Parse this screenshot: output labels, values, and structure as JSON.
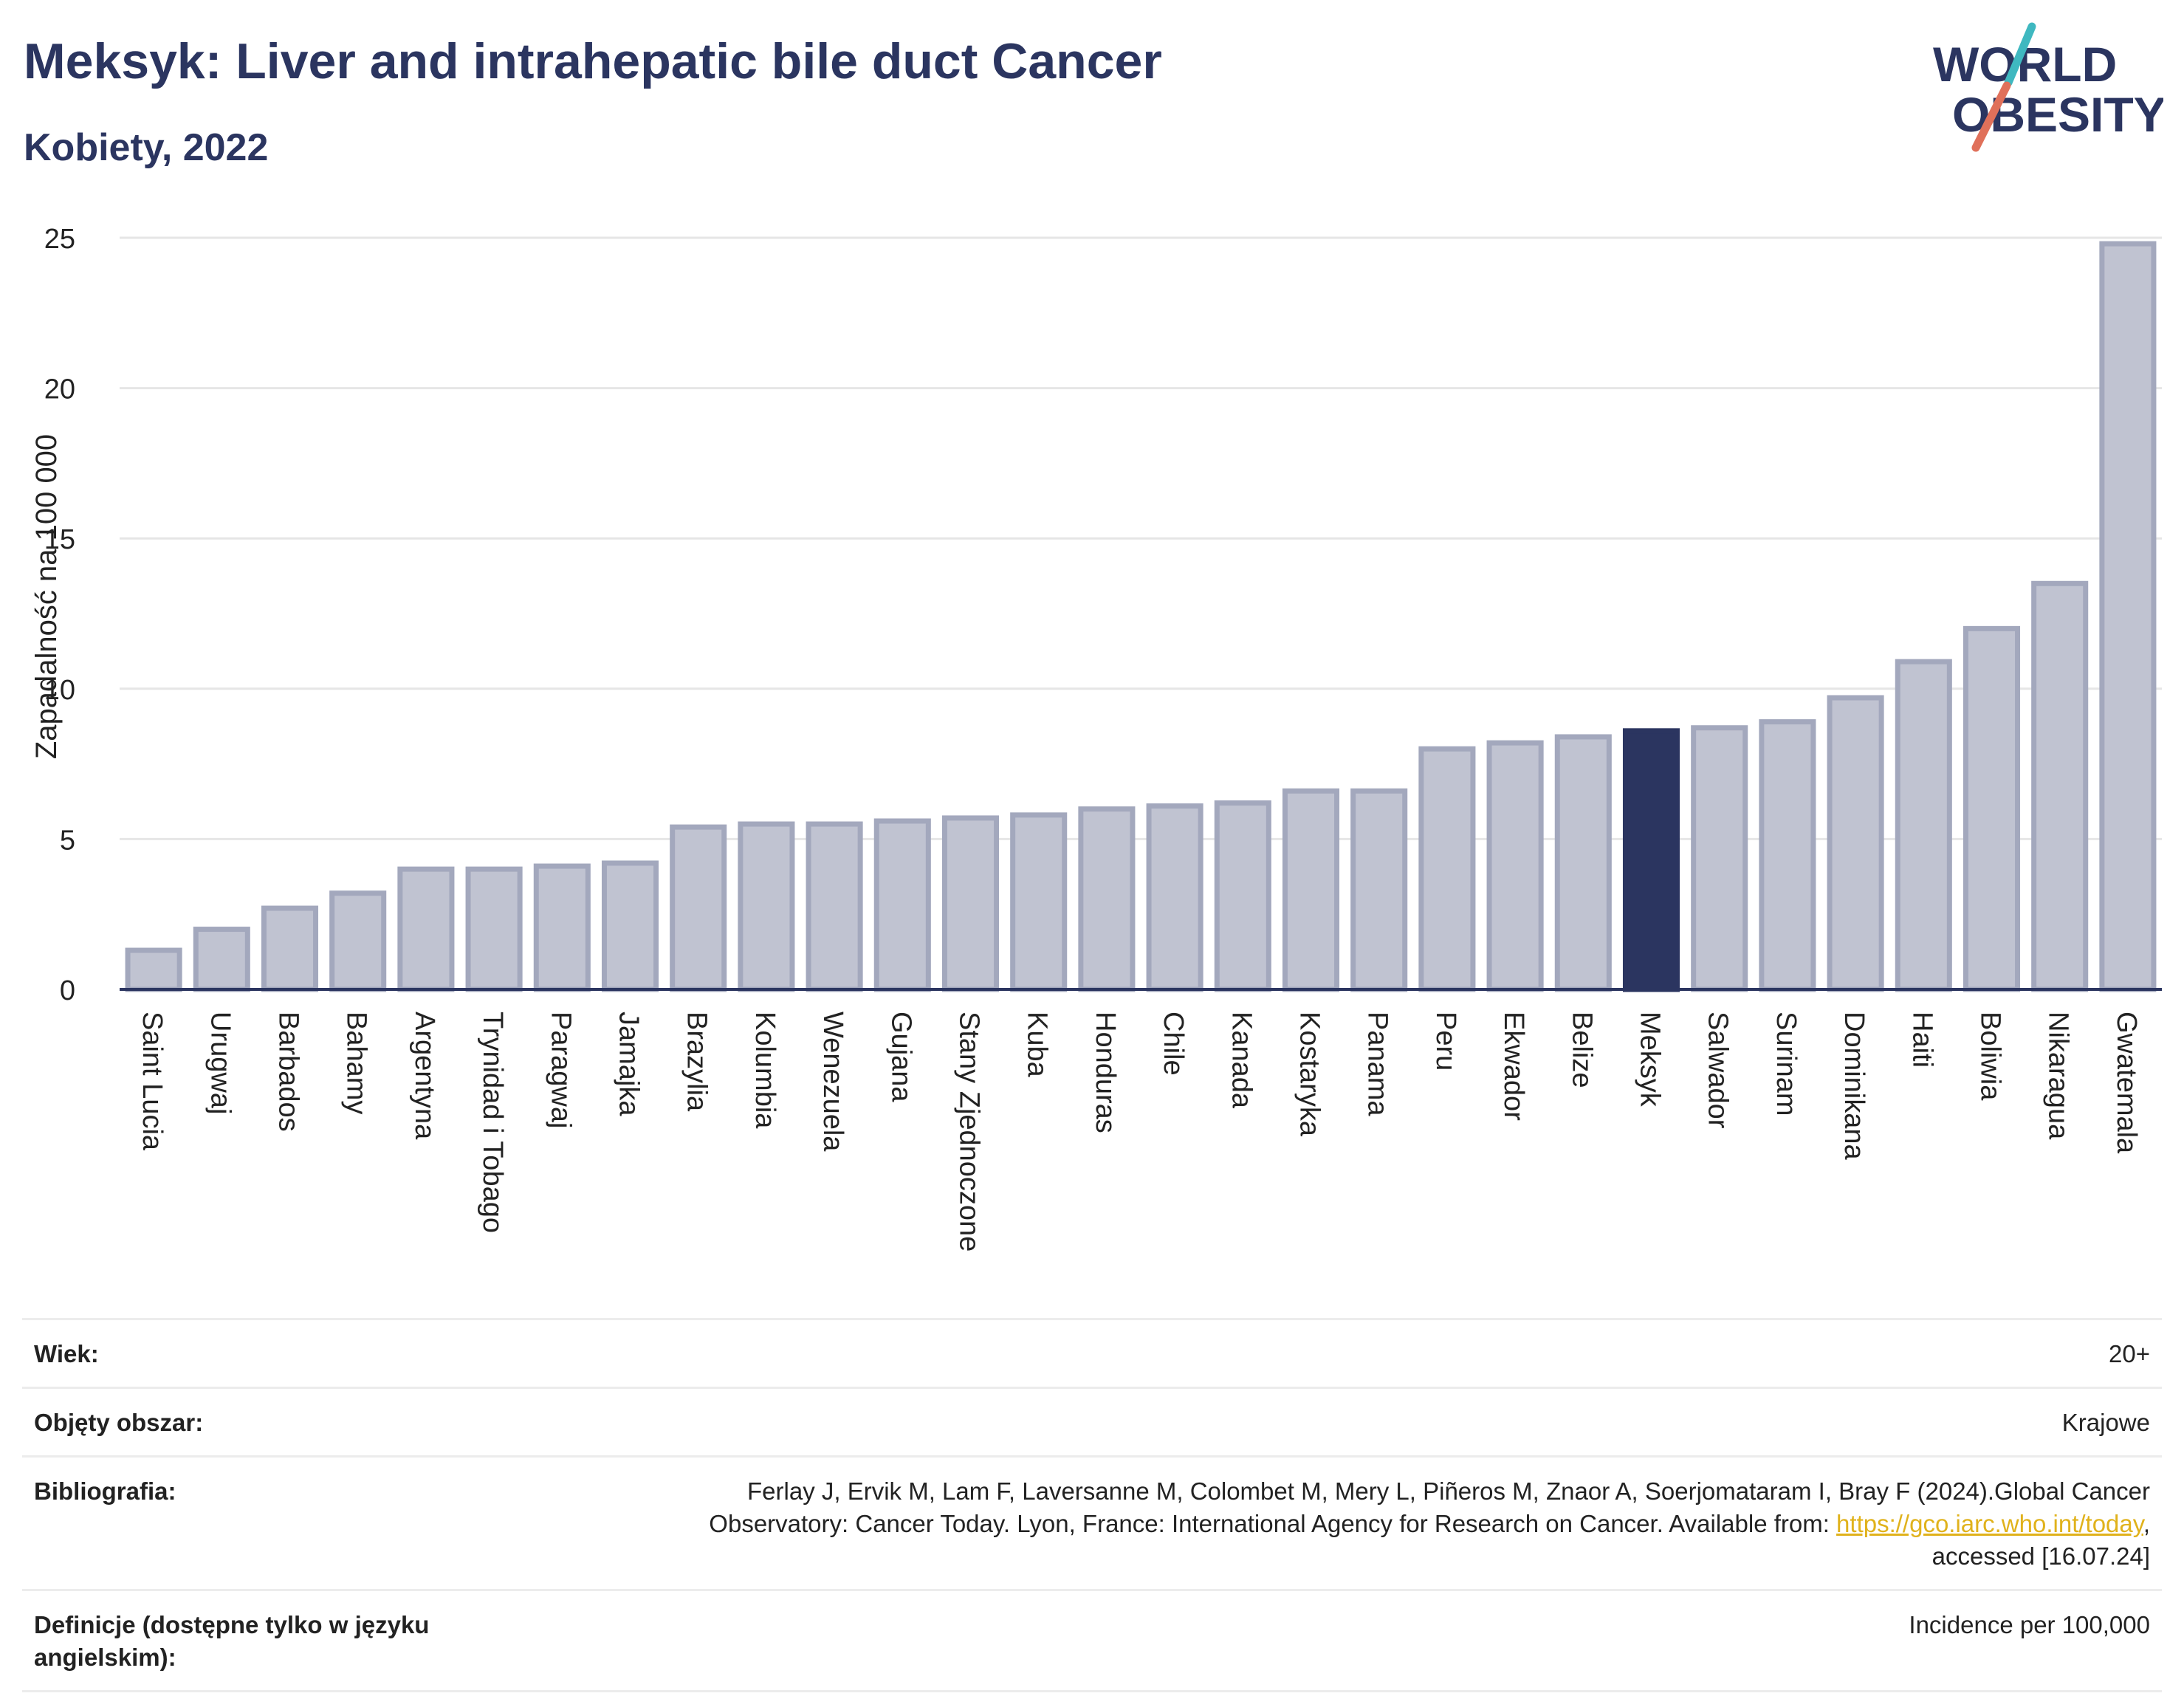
{
  "header": {
    "title": "Meksyk: Liver and intrahepatic bile duct Cancer",
    "subtitle": "Kobiety, 2022"
  },
  "logo": {
    "line1": "WORLD",
    "line2": "OBESITY",
    "colors": {
      "text": "#2b3560",
      "slash_teal": "#3fb8c0",
      "slash_coral": "#e0705a"
    }
  },
  "colors": {
    "bar": "#c0c3d1",
    "bar_border": "#a3a8bd",
    "highlight": "#2b3560",
    "grid": "#e6e6e6",
    "axis": "#2b3560",
    "text": "#222222"
  },
  "chart_data": {
    "type": "bar",
    "ylabel": "Zapadalność na 100 000",
    "ylim": [
      0,
      25
    ],
    "yticks": [
      0,
      5,
      10,
      15,
      20,
      25
    ],
    "grid": true,
    "highlight": "Meksyk",
    "categories": [
      "Saint Lucia",
      "Urugwaj",
      "Barbados",
      "Bahamy",
      "Argentyna",
      "Trynidad i Tobago",
      "Paragwaj",
      "Jamajka",
      "Brazylia",
      "Kolumbia",
      "Wenezuela",
      "Gujana",
      "Stany Zjednoczone",
      "Kuba",
      "Honduras",
      "Chile",
      "Kanada",
      "Kostaryka",
      "Panama",
      "Peru",
      "Ekwador",
      "Belize",
      "Meksyk",
      "Salwador",
      "Surinam",
      "Dominikana",
      "Haiti",
      "Boliwia",
      "Nikaragua",
      "Gwatemala"
    ],
    "values": [
      1.3,
      2.0,
      2.7,
      3.2,
      4.0,
      4.0,
      4.1,
      4.2,
      5.4,
      5.5,
      5.5,
      5.6,
      5.7,
      5.8,
      6.0,
      6.1,
      6.2,
      6.6,
      6.6,
      8.0,
      8.2,
      8.4,
      8.6,
      8.7,
      8.9,
      9.7,
      10.9,
      12.0,
      13.5,
      24.8
    ]
  },
  "meta": [
    {
      "key": "Wiek:",
      "value": "20+"
    },
    {
      "key": "Objęty obszar:",
      "value": "Krajowe"
    },
    {
      "key": "Bibliografia:",
      "value_line1": "Ferlay J, Ervik M, Lam F, Laversanne M, Colombet M, Mery L, Piñeros M, Znaor A, Soerjomataram I, Bray F (2024).Global Cancer",
      "value_line2_pre": "Observatory: Cancer Today. Lyon, France: International Agency for Research on Cancer. Available from: ",
      "value_link": "https://gco.iarc.who.int/today",
      "value_line2_post": ",",
      "value_line3": "accessed [16.07.24]"
    },
    {
      "key": "Definicje (dostępne tylko w języku angielskim):",
      "value": "Incidence per 100,000"
    }
  ]
}
